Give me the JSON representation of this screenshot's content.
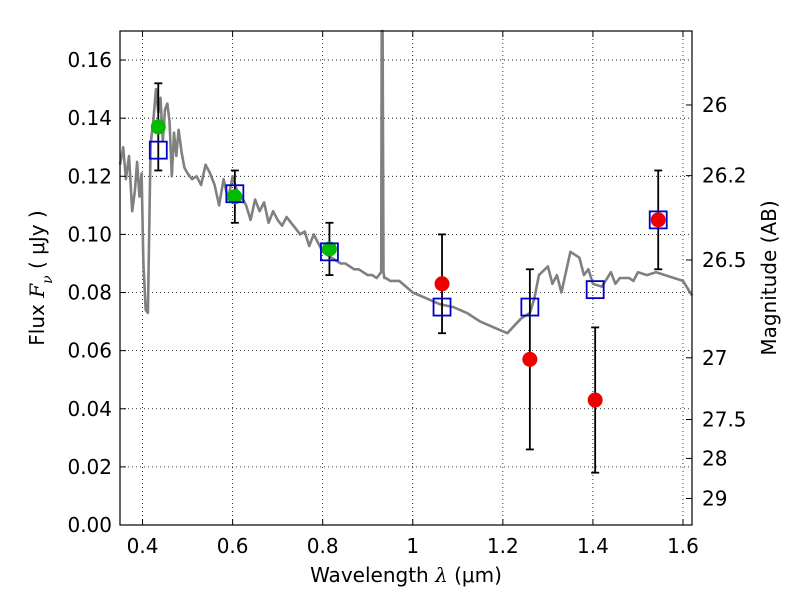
{
  "chart_data": {
    "type": "scatter",
    "xlabel": {
      "prefix": "Wavelength  ",
      "symbol": "λ",
      "unit": " (μm)"
    },
    "ylabel": {
      "prefix": "Flux  ",
      "symbol": "F",
      "sub": "ν",
      "unit": "  ( μJy )"
    },
    "y2label": "Magnitude (AB)",
    "xlim": [
      0.35,
      1.62
    ],
    "ylim": [
      0.0,
      0.17
    ],
    "grid": true,
    "xticks": [
      {
        "value": 0.4,
        "label": "0.4"
      },
      {
        "value": 0.6,
        "label": "0.6"
      },
      {
        "value": 0.8,
        "label": "0.8"
      },
      {
        "value": 1.0,
        "label": "1"
      },
      {
        "value": 1.2,
        "label": "1.2"
      },
      {
        "value": 1.4,
        "label": "1.4"
      },
      {
        "value": 1.6,
        "label": "1.6"
      }
    ],
    "yticks": [
      {
        "value": 0.0,
        "label": "0.00"
      },
      {
        "value": 0.02,
        "label": "0.02"
      },
      {
        "value": 0.04,
        "label": "0.04"
      },
      {
        "value": 0.06,
        "label": "0.06"
      },
      {
        "value": 0.08,
        "label": "0.08"
      },
      {
        "value": 0.1,
        "label": "0.10"
      },
      {
        "value": 0.12,
        "label": "0.12"
      },
      {
        "value": 0.14,
        "label": "0.14"
      },
      {
        "value": 0.16,
        "label": "0.16"
      }
    ],
    "y2ticks": [
      {
        "mag": 26,
        "label": "26"
      },
      {
        "mag": 26.2,
        "label": "26.2"
      },
      {
        "mag": 26.5,
        "label": "26.5"
      },
      {
        "mag": 27,
        "label": "27"
      },
      {
        "mag": 27.5,
        "label": "27.5"
      },
      {
        "mag": 28,
        "label": "28"
      },
      {
        "mag": 29,
        "label": "29"
      }
    ],
    "template_spectrum": {
      "color": "#808080",
      "x": [
        0.35,
        0.357,
        0.363,
        0.37,
        0.377,
        0.383,
        0.388,
        0.393,
        0.398,
        0.402,
        0.407,
        0.412,
        0.418,
        0.424,
        0.43,
        0.435,
        0.44,
        0.445,
        0.45,
        0.455,
        0.46,
        0.465,
        0.47,
        0.475,
        0.48,
        0.487,
        0.493,
        0.5,
        0.51,
        0.52,
        0.53,
        0.54,
        0.55,
        0.56,
        0.57,
        0.58,
        0.59,
        0.6,
        0.61,
        0.62,
        0.63,
        0.64,
        0.65,
        0.66,
        0.67,
        0.68,
        0.69,
        0.7,
        0.71,
        0.72,
        0.73,
        0.74,
        0.75,
        0.76,
        0.77,
        0.78,
        0.79,
        0.8,
        0.81,
        0.82,
        0.83,
        0.84,
        0.85,
        0.86,
        0.87,
        0.88,
        0.89,
        0.9,
        0.91,
        0.92,
        0.93,
        0.931,
        0.933,
        0.935,
        0.937,
        0.94,
        0.95,
        0.97,
        1.0,
        1.03,
        1.06,
        1.09,
        1.12,
        1.15,
        1.18,
        1.21,
        1.24,
        1.26,
        1.27,
        1.28,
        1.3,
        1.31,
        1.32,
        1.33,
        1.35,
        1.37,
        1.38,
        1.39,
        1.4,
        1.42,
        1.44,
        1.45,
        1.46,
        1.48,
        1.49,
        1.5,
        1.52,
        1.54,
        1.56,
        1.58,
        1.6,
        1.62
      ],
      "y": [
        0.124,
        0.13,
        0.119,
        0.127,
        0.108,
        0.115,
        0.125,
        0.113,
        0.121,
        0.09,
        0.074,
        0.073,
        0.131,
        0.139,
        0.15,
        0.142,
        0.147,
        0.132,
        0.143,
        0.145,
        0.139,
        0.12,
        0.135,
        0.127,
        0.136,
        0.128,
        0.123,
        0.121,
        0.119,
        0.12,
        0.117,
        0.124,
        0.121,
        0.117,
        0.11,
        0.119,
        0.112,
        0.12,
        0.115,
        0.113,
        0.11,
        0.105,
        0.112,
        0.108,
        0.111,
        0.104,
        0.108,
        0.105,
        0.103,
        0.106,
        0.104,
        0.102,
        0.1,
        0.101,
        0.096,
        0.1,
        0.097,
        0.094,
        0.093,
        0.092,
        0.091,
        0.09,
        0.09,
        0.089,
        0.088,
        0.088,
        0.087,
        0.086,
        0.086,
        0.085,
        0.087,
        0.17,
        0.17,
        0.087,
        0.085,
        0.085,
        0.084,
        0.084,
        0.08,
        0.078,
        0.076,
        0.075,
        0.073,
        0.07,
        0.068,
        0.066,
        0.071,
        0.073,
        0.078,
        0.086,
        0.089,
        0.083,
        0.086,
        0.08,
        0.094,
        0.092,
        0.086,
        0.088,
        0.083,
        0.082,
        0.087,
        0.083,
        0.085,
        0.085,
        0.084,
        0.087,
        0.086,
        0.087,
        0.086,
        0.085,
        0.084,
        0.079
      ]
    },
    "series": [
      {
        "name": "green-photometry",
        "color": "#00bb00",
        "marker": "circle",
        "points": [
          {
            "x": 0.435,
            "y": 0.137,
            "err_low": 0.122,
            "err_high": 0.152
          },
          {
            "x": 0.605,
            "y": 0.113,
            "err_low": 0.104,
            "err_high": 0.122
          },
          {
            "x": 0.815,
            "y": 0.095,
            "err_low": 0.086,
            "err_high": 0.104
          }
        ]
      },
      {
        "name": "red-photometry",
        "color": "#ee0000",
        "marker": "circle",
        "points": [
          {
            "x": 1.065,
            "y": 0.083,
            "err_low": 0.066,
            "err_high": 0.1
          },
          {
            "x": 1.26,
            "y": 0.057,
            "err_low": 0.026,
            "err_high": 0.088
          },
          {
            "x": 1.405,
            "y": 0.043,
            "err_low": 0.018,
            "err_high": 0.068
          },
          {
            "x": 1.545,
            "y": 0.105,
            "err_low": 0.088,
            "err_high": 0.122
          }
        ]
      },
      {
        "name": "model-fluxes",
        "color": "#0000cc",
        "marker": "open-square",
        "points": [
          {
            "x": 0.435,
            "y": 0.129
          },
          {
            "x": 0.605,
            "y": 0.114
          },
          {
            "x": 0.815,
            "y": 0.094
          },
          {
            "x": 1.065,
            "y": 0.075
          },
          {
            "x": 1.26,
            "y": 0.075
          },
          {
            "x": 1.405,
            "y": 0.081
          },
          {
            "x": 1.545,
            "y": 0.105
          }
        ]
      }
    ]
  }
}
